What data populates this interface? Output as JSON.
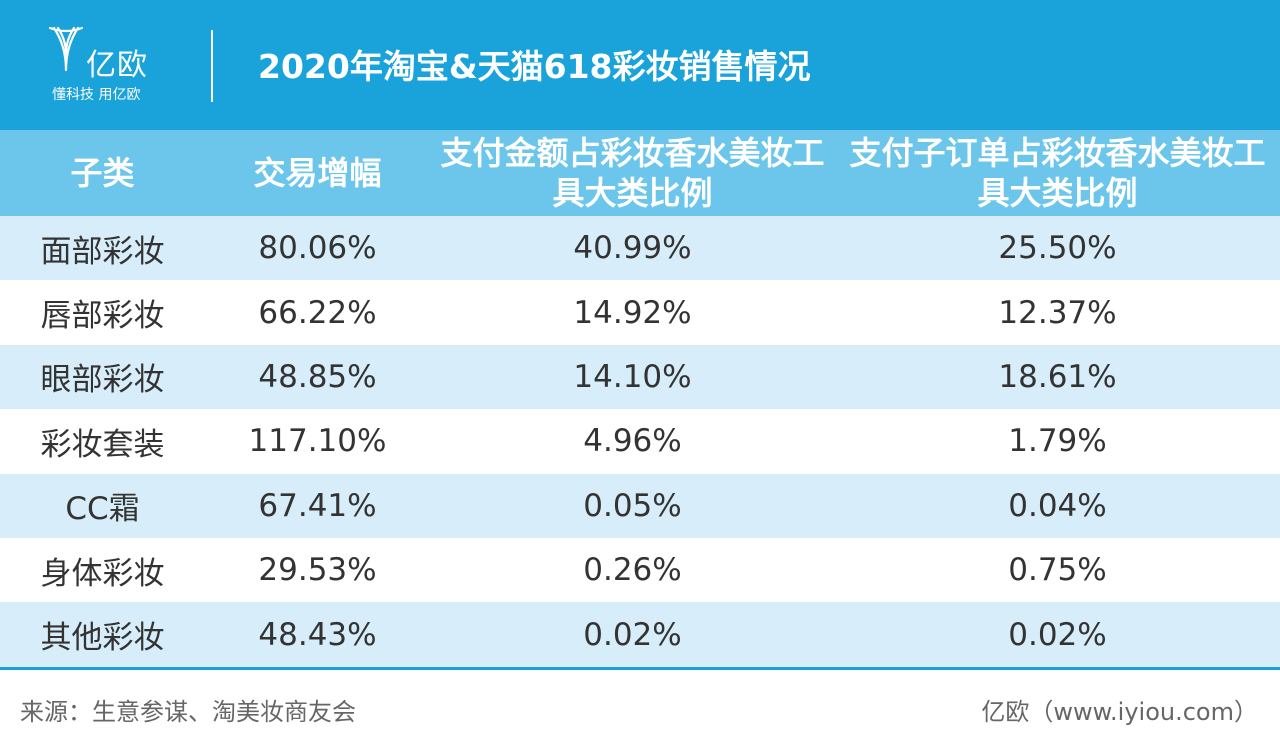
{
  "header": {
    "logo_name": "亿欧",
    "logo_slogan": "懂科技 用亿欧",
    "title": "2020年淘宝&天猫618彩妆销售情况",
    "background_color": "#1aa3db"
  },
  "chart_data": {
    "type": "table",
    "title": "2020年淘宝&天猫618彩妆销售情况",
    "columns": [
      "子类",
      "交易增幅",
      "支付金额占彩妆香水美妆工具大类比例",
      "支付子订单占彩妆香水美妆工具大类比例"
    ],
    "rows": [
      [
        "面部彩妆",
        "80.06%",
        "40.99%",
        "25.50%"
      ],
      [
        "唇部彩妆",
        "66.22%",
        "14.92%",
        "12.37%"
      ],
      [
        "眼部彩妆",
        "48.85%",
        "14.10%",
        "18.61%"
      ],
      [
        "彩妆套装",
        "117.10%",
        "4.96%",
        "1.79%"
      ],
      [
        "CC霜",
        "67.41%",
        "0.05%",
        "0.04%"
      ],
      [
        "身体彩妆",
        "29.53%",
        "0.26%",
        "0.75%"
      ],
      [
        "其他彩妆",
        "48.43%",
        "0.02%",
        "0.02%"
      ]
    ],
    "header_color": "#6cc5eb",
    "stripe_color": "#d7edf9"
  },
  "footer": {
    "source": "来源：生意参谋、淘美妆商友会",
    "credit": "亿欧（www.iyiou.com）"
  }
}
